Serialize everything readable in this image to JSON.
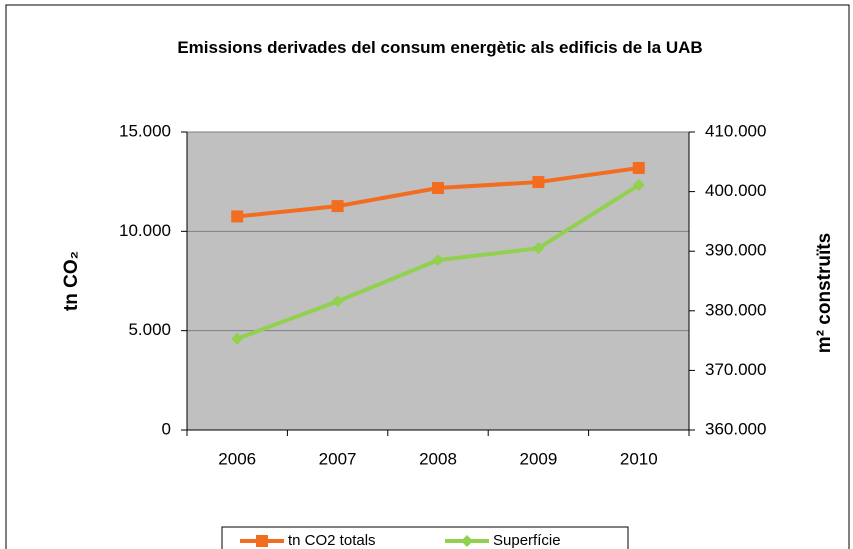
{
  "chart_data": {
    "type": "line",
    "title": "Emissions derivades del consum energètic als edificis de la UAB",
    "categories": [
      "2006",
      "2007",
      "2008",
      "2009",
      "2010"
    ],
    "y_label": "tn CO₂",
    "y2_label": "m² construïts",
    "ylim": [
      0,
      15000
    ],
    "yticks": [
      0,
      {
        "value": 5000,
        "label": "5.000"
      },
      {
        "value": 10000,
        "label": "10.000"
      },
      {
        "value": 15000,
        "label": "15.000"
      }
    ],
    "y2lim": [
      360000,
      410000
    ],
    "y2ticks": [
      {
        "value": 360000,
        "label": "360.000"
      },
      {
        "value": 370000,
        "label": "370.000"
      },
      {
        "value": 380000,
        "label": "380.000"
      },
      {
        "value": 390000,
        "label": "390.000"
      },
      {
        "value": 400000,
        "label": "400.000"
      },
      {
        "value": 410000,
        "label": "410.000"
      }
    ],
    "grid": true,
    "legend": "bottom",
    "series": [
      {
        "name": "tn CO2 totals",
        "color": "#f26d1f",
        "marker": "square",
        "values": [
          10750,
          11270,
          12180,
          12480,
          13190
        ]
      },
      {
        "name": "Superfície",
        "color": "#92d050",
        "marker": "diamond",
        "axis": "y2",
        "values": [
          375300,
          381600,
          388500,
          390500,
          401100
        ]
      }
    ]
  }
}
